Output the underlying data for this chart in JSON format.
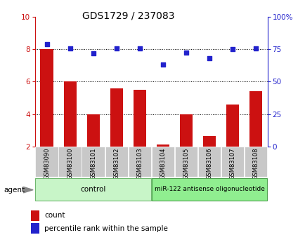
{
  "title": "GDS1729 / 237083",
  "samples": [
    "GSM83090",
    "GSM83100",
    "GSM83101",
    "GSM83102",
    "GSM83103",
    "GSM83104",
    "GSM83105",
    "GSM83106",
    "GSM83107",
    "GSM83108"
  ],
  "red_values": [
    8.0,
    6.0,
    4.0,
    5.6,
    5.5,
    2.1,
    4.0,
    2.65,
    4.6,
    5.4
  ],
  "blue_values": [
    8.3,
    8.05,
    7.75,
    8.05,
    8.05,
    7.05,
    7.8,
    7.45,
    8.0,
    8.05
  ],
  "ylim_left": [
    2,
    10
  ],
  "ylim_right": [
    0,
    100
  ],
  "yticks_left": [
    2,
    4,
    6,
    8,
    10
  ],
  "yticks_right": [
    0,
    25,
    50,
    75,
    100
  ],
  "ytick_labels_right": [
    "0",
    "25",
    "50",
    "75",
    "100%"
  ],
  "red_color": "#cc1111",
  "blue_color": "#2222cc",
  "bar_bg": "#c8c8c8",
  "control_bg": "#c8f5c8",
  "treatment_bg": "#90ee90",
  "control_label": "control",
  "treatment_label": "miR-122 antisense oligonucleotide",
  "agent_label": "agent",
  "legend_count": "count",
  "legend_percentile": "percentile rank within the sample",
  "n_control": 5,
  "n_treatment": 5,
  "title_fontsize": 10,
  "tick_fontsize": 7.5,
  "bar_width": 0.55
}
